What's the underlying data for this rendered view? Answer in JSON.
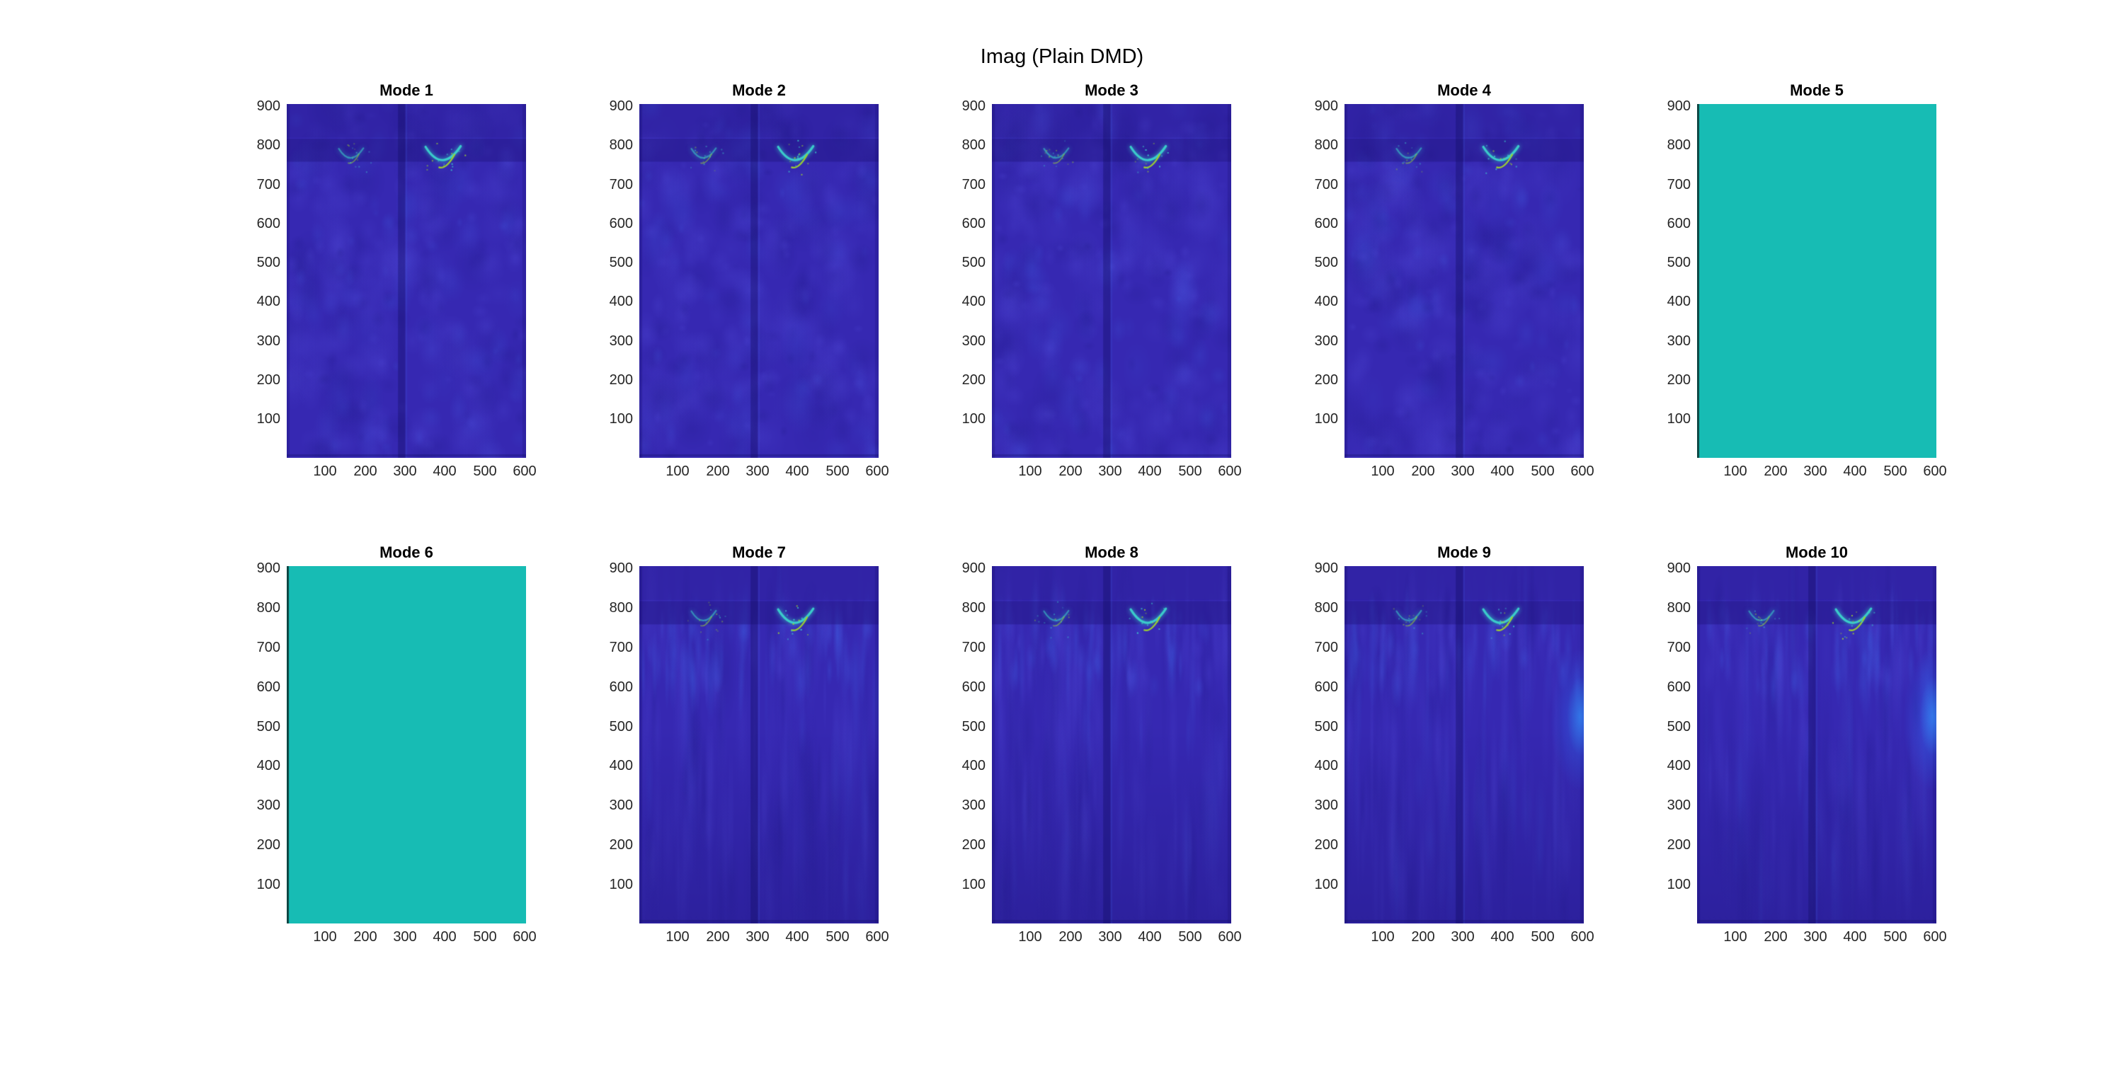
{
  "figure": {
    "title": "Imag (Plain DMD)",
    "background": "#ffffff"
  },
  "palette": {
    "base": "#3628b2",
    "blob_light": "#504ad8",
    "blob_bright": "#3f64e6",
    "blob_dark": "#201a8a",
    "band_dark": "#1e147d",
    "seam_dark": "#120c64",
    "v_cyan": "#3cd2cc",
    "v_green": "#9ed32f",
    "flat_teal": "#17bcb4",
    "flat_edge": "#0a302e",
    "right_glow": "#2f6cf5",
    "right_glow_core": "#35a8ff",
    "tick_text": "#262626",
    "title_text": "#000000"
  },
  "chart_data": {
    "type": "heatmap",
    "title": "Imag (Plain DMD)",
    "layout": {
      "rows": 2,
      "cols": 5
    },
    "x_tick_labels": [
      "100",
      "200",
      "300",
      "400",
      "500",
      "600"
    ],
    "y_tick_labels": [
      "900",
      "800",
      "700",
      "600",
      "500",
      "400",
      "300",
      "200",
      "100"
    ],
    "x_range": [
      0,
      600
    ],
    "y_range": [
      0,
      900
    ],
    "y_axis_direction": "increasing-upward",
    "modes": [
      {
        "label": "Mode 1",
        "render": "texture",
        "style": "blobby",
        "seed": 101,
        "v_mark": true,
        "left_mark": true,
        "right_glow": false
      },
      {
        "label": "Mode 2",
        "render": "texture",
        "style": "blobby",
        "seed": 102,
        "v_mark": true,
        "left_mark": true,
        "right_glow": false
      },
      {
        "label": "Mode 3",
        "render": "texture",
        "style": "blobby",
        "seed": 103,
        "v_mark": true,
        "left_mark": true,
        "right_glow": false
      },
      {
        "label": "Mode 4",
        "render": "texture",
        "style": "blobby",
        "seed": 104,
        "v_mark": true,
        "left_mark": true,
        "right_glow": false
      },
      {
        "label": "Mode 5",
        "render": "flat",
        "style": "uniform",
        "seed": 105,
        "v_mark": false,
        "left_mark": false,
        "right_glow": false,
        "fill": "#17bcb4"
      },
      {
        "label": "Mode 6",
        "render": "flat",
        "style": "uniform",
        "seed": 106,
        "v_mark": false,
        "left_mark": false,
        "right_glow": false,
        "fill": "#17bcb4"
      },
      {
        "label": "Mode 7",
        "render": "texture",
        "style": "streaky",
        "seed": 107,
        "v_mark": true,
        "left_mark": true,
        "right_glow": false
      },
      {
        "label": "Mode 8",
        "render": "texture",
        "style": "streaky",
        "seed": 108,
        "v_mark": true,
        "left_mark": true,
        "right_glow": false
      },
      {
        "label": "Mode 9",
        "render": "texture",
        "style": "streaky",
        "seed": 109,
        "v_mark": true,
        "left_mark": true,
        "right_glow": true
      },
      {
        "label": "Mode 10",
        "render": "texture",
        "style": "streaky",
        "seed": 110,
        "v_mark": true,
        "left_mark": true,
        "right_glow": true
      }
    ]
  }
}
